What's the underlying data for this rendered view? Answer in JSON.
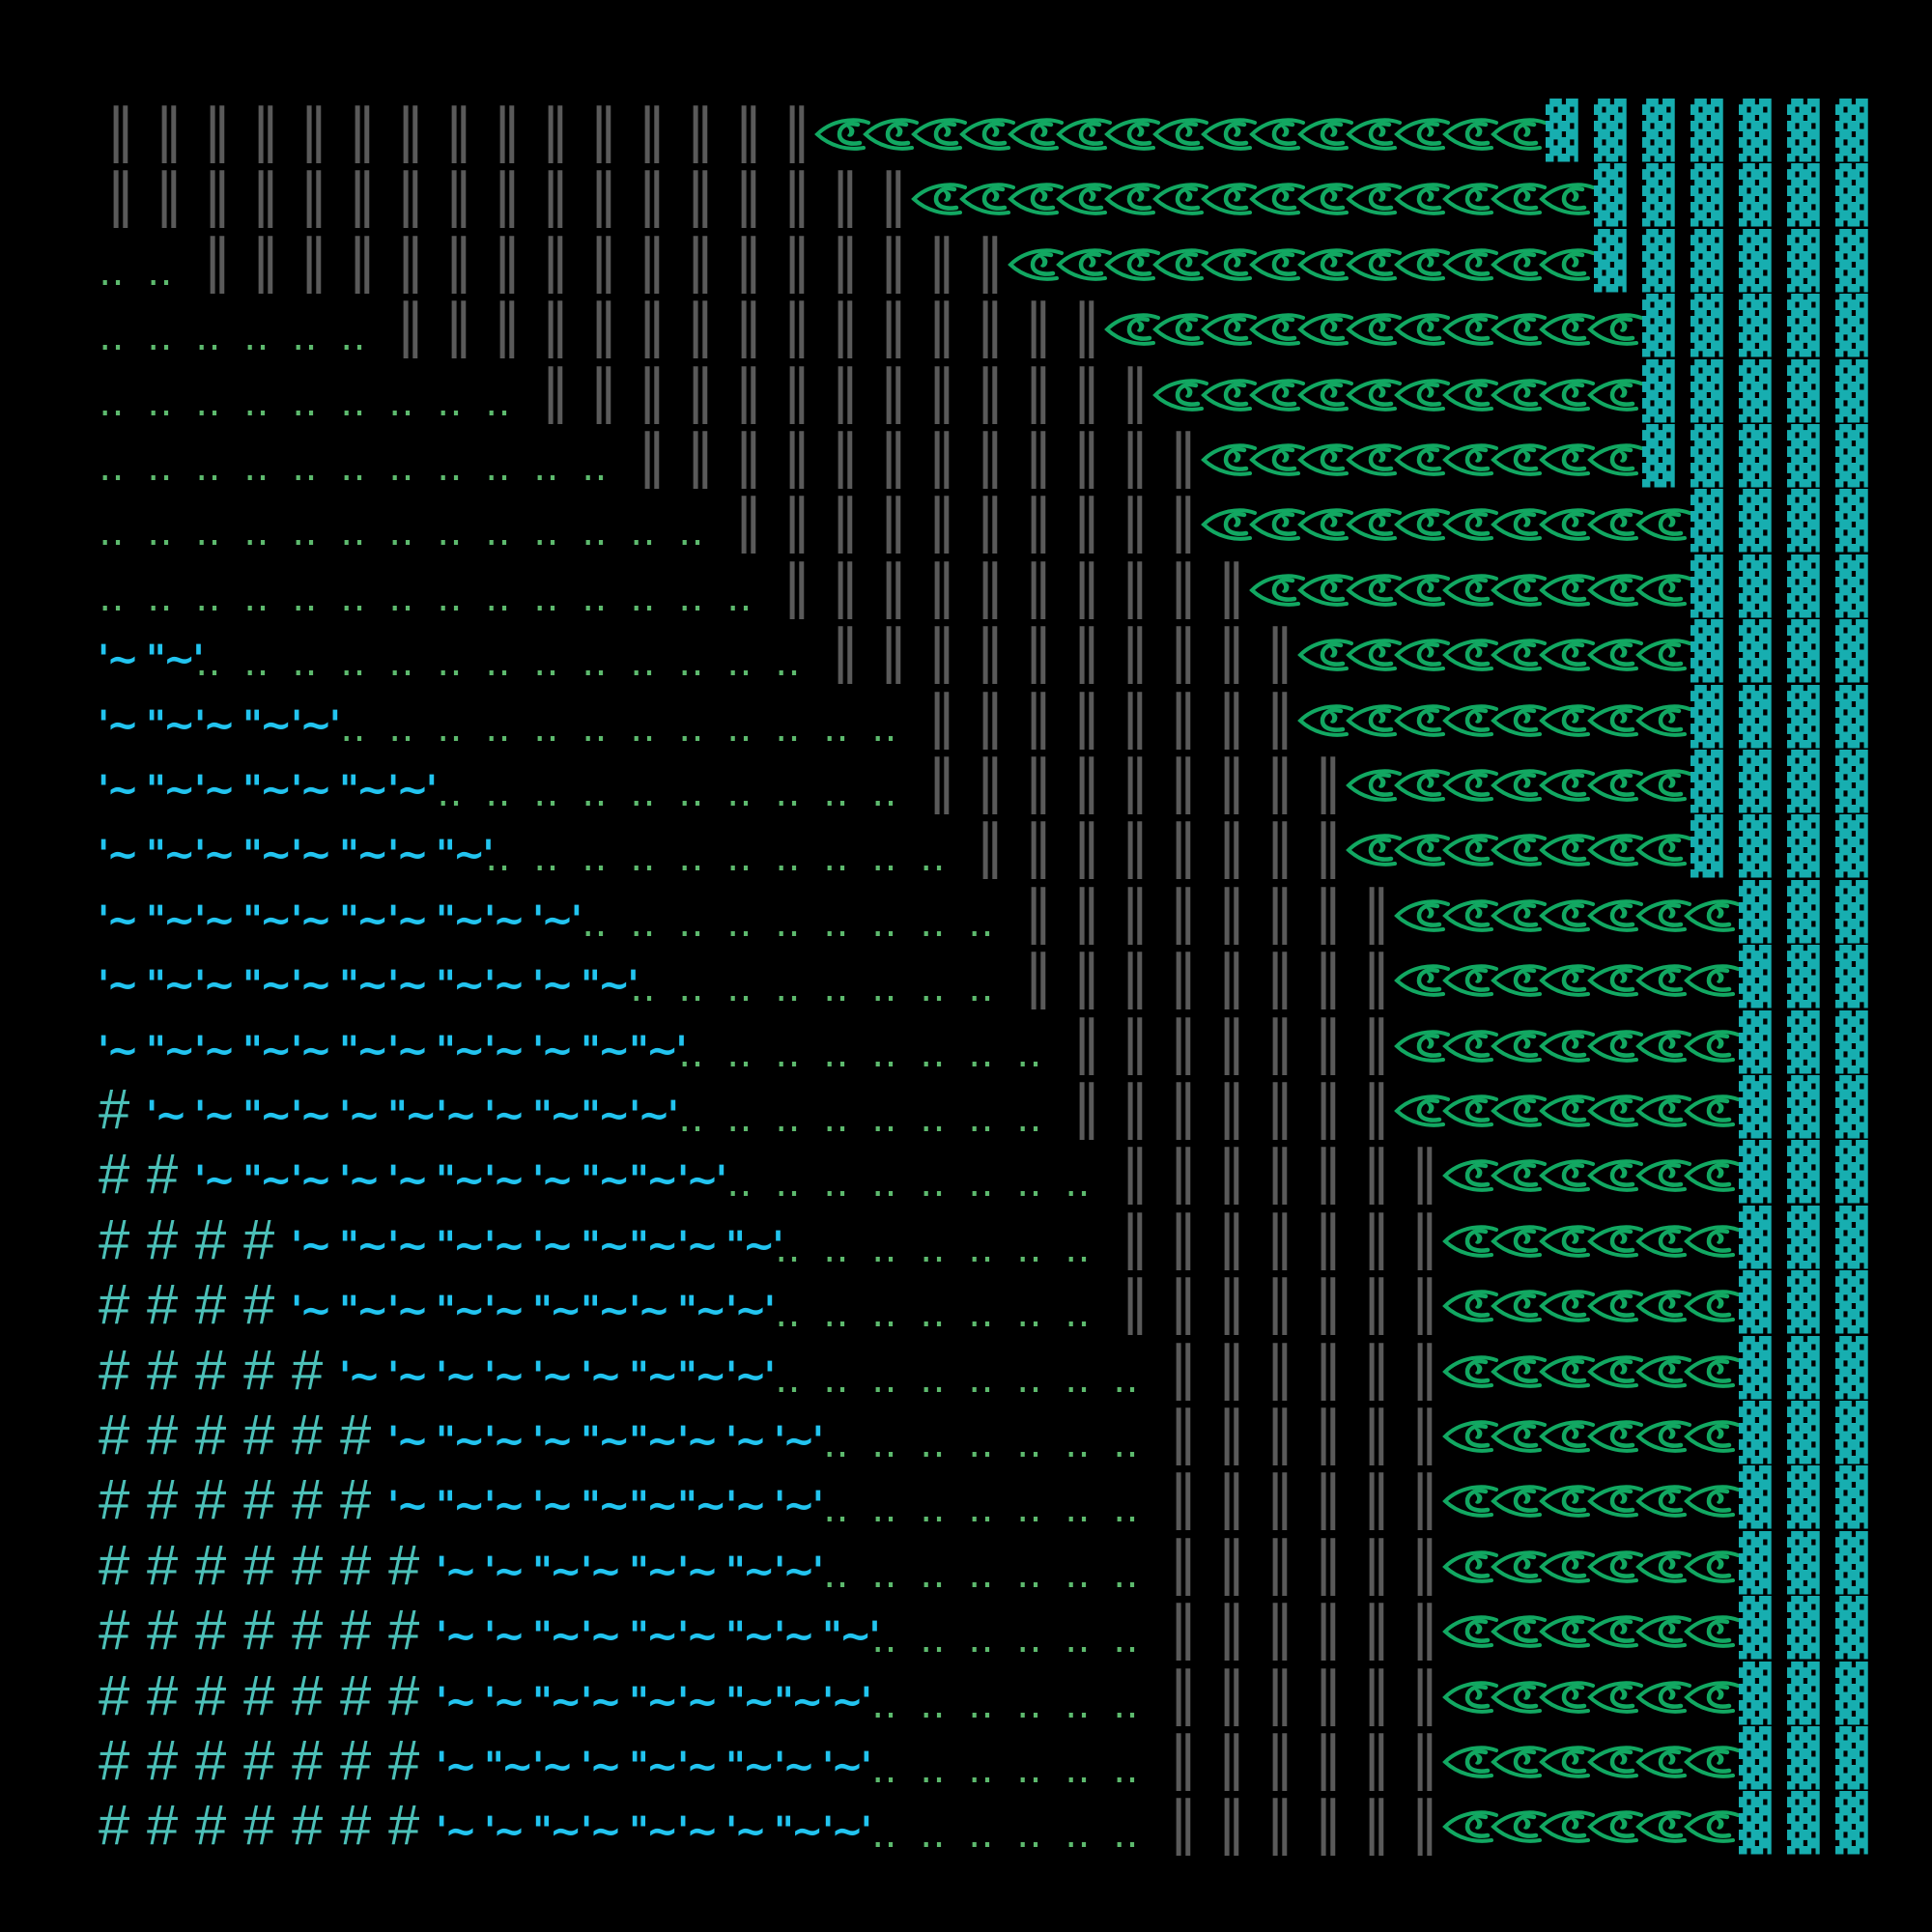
{
  "glyphs": {
    "bar": "‖",
    "dots": "‥",
    "block": "▓",
    "hash": "#",
    "eye": "eye-icon"
  },
  "colors": {
    "background": "#000000",
    "bar": "#5a5a5a",
    "eye": "#12a862",
    "block": "#17aeb0",
    "dots": "#5dba6e",
    "wave": "#22c4f0",
    "hash": "#4cc0b8"
  },
  "rows": [
    [
      {
        "type": "bar",
        "count": 15
      },
      {
        "type": "eye",
        "count": 15
      },
      {
        "type": "block",
        "count": 7
      }
    ],
    [
      {
        "type": "bar",
        "count": 17
      },
      {
        "type": "eye",
        "count": 14
      },
      {
        "type": "block",
        "count": 6
      }
    ],
    [
      {
        "type": "dots",
        "count": 2
      },
      {
        "type": "bar",
        "count": 17
      },
      {
        "type": "eye",
        "count": 12
      },
      {
        "type": "block",
        "count": 6
      }
    ],
    [
      {
        "type": "dots",
        "count": 6
      },
      {
        "type": "bar",
        "count": 15
      },
      {
        "type": "eye",
        "count": 11
      },
      {
        "type": "block",
        "count": 5
      }
    ],
    [
      {
        "type": "dots",
        "count": 9
      },
      {
        "type": "bar",
        "count": 13
      },
      {
        "type": "eye",
        "count": 10
      },
      {
        "type": "block",
        "count": 5
      }
    ],
    [
      {
        "type": "dots",
        "count": 11
      },
      {
        "type": "bar",
        "count": 12
      },
      {
        "type": "eye",
        "count": 9
      },
      {
        "type": "block",
        "count": 5
      }
    ],
    [
      {
        "type": "dots",
        "count": 13
      },
      {
        "type": "bar",
        "count": 10
      },
      {
        "type": "eye",
        "count": 10
      },
      {
        "type": "block",
        "count": 4
      }
    ],
    [
      {
        "type": "dots",
        "count": 14
      },
      {
        "type": "bar",
        "count": 10
      },
      {
        "type": "eye",
        "count": 9
      },
      {
        "type": "block",
        "count": 4
      }
    ],
    [
      {
        "type": "wave",
        "text": "'~\"~'"
      },
      {
        "type": "dots",
        "count": 13
      },
      {
        "type": "bar",
        "count": 10
      },
      {
        "type": "eye",
        "count": 8
      },
      {
        "type": "block",
        "count": 4
      }
    ],
    [
      {
        "type": "wave",
        "text": "'~\"~'~\"~'~'"
      },
      {
        "type": "dots",
        "count": 12
      },
      {
        "type": "bar",
        "count": 8
      },
      {
        "type": "eye",
        "count": 8
      },
      {
        "type": "block",
        "count": 4
      }
    ],
    [
      {
        "type": "wave",
        "text": "'~\"~'~\"~'~\"~'~'"
      },
      {
        "type": "dots",
        "count": 10
      },
      {
        "type": "bar",
        "count": 9
      },
      {
        "type": "eye",
        "count": 7
      },
      {
        "type": "block",
        "count": 4
      }
    ],
    [
      {
        "type": "wave",
        "text": "'~\"~'~\"~'~\"~'~\"~'"
      },
      {
        "type": "dots",
        "count": 10
      },
      {
        "type": "bar",
        "count": 8
      },
      {
        "type": "eye",
        "count": 7
      },
      {
        "type": "block",
        "count": 4
      }
    ],
    [
      {
        "type": "wave",
        "text": "'~\"~'~\"~'~\"~'~\"~'~'~'"
      },
      {
        "type": "dots",
        "count": 9
      },
      {
        "type": "bar",
        "count": 8
      },
      {
        "type": "eye",
        "count": 7
      },
      {
        "type": "block",
        "count": 3
      }
    ],
    [
      {
        "type": "wave",
        "text": "'~\"~'~\"~'~\"~'~\"~'~'~\"~'"
      },
      {
        "type": "dots",
        "count": 8
      },
      {
        "type": "bar",
        "count": 8
      },
      {
        "type": "eye",
        "count": 7
      },
      {
        "type": "block",
        "count": 3
      }
    ],
    [
      {
        "type": "wave",
        "text": "'~\"~'~\"~'~\"~'~\"~'~'~\"~\"~'"
      },
      {
        "type": "dots",
        "count": 8
      },
      {
        "type": "bar",
        "count": 7
      },
      {
        "type": "eye",
        "count": 7
      },
      {
        "type": "block",
        "count": 3
      }
    ],
    [
      {
        "type": "hash",
        "count": 1
      },
      {
        "type": "wave",
        "text": "'~'~\"~'~'~\"~'~'~\"~\"~'~'"
      },
      {
        "type": "dots",
        "count": 8
      },
      {
        "type": "bar",
        "count": 7
      },
      {
        "type": "eye",
        "count": 7
      },
      {
        "type": "block",
        "count": 3
      }
    ],
    [
      {
        "type": "hash",
        "count": 2
      },
      {
        "type": "wave",
        "text": "'~\"~'~'~'~\"~'~'~\"~\"~'~'"
      },
      {
        "type": "dots",
        "count": 8
      },
      {
        "type": "bar",
        "count": 7
      },
      {
        "type": "eye",
        "count": 6
      },
      {
        "type": "block",
        "count": 3
      }
    ],
    [
      {
        "type": "hash",
        "count": 4
      },
      {
        "type": "wave",
        "text": "'~\"~'~\"~'~'~\"~\"~'~\"~'"
      },
      {
        "type": "dots",
        "count": 7
      },
      {
        "type": "bar",
        "count": 7
      },
      {
        "type": "eye",
        "count": 6
      },
      {
        "type": "block",
        "count": 3
      }
    ],
    [
      {
        "type": "hash",
        "count": 4
      },
      {
        "type": "wave",
        "text": "'~\"~'~\"~'~\"~\"~'~\"~'~'"
      },
      {
        "type": "dots",
        "count": 7
      },
      {
        "type": "bar",
        "count": 7
      },
      {
        "type": "eye",
        "count": 6
      },
      {
        "type": "block",
        "count": 3
      }
    ],
    [
      {
        "type": "hash",
        "count": 5
      },
      {
        "type": "wave",
        "text": "'~'~'~'~'~'~\"~\"~'~'"
      },
      {
        "type": "dots",
        "count": 8
      },
      {
        "type": "bar",
        "count": 6
      },
      {
        "type": "eye",
        "count": 6
      },
      {
        "type": "block",
        "count": 3
      }
    ],
    [
      {
        "type": "hash",
        "count": 6
      },
      {
        "type": "wave",
        "text": "'~\"~'~'~\"~\"~'~'~'~'"
      },
      {
        "type": "dots",
        "count": 7
      },
      {
        "type": "bar",
        "count": 6
      },
      {
        "type": "eye",
        "count": 6
      },
      {
        "type": "block",
        "count": 3
      }
    ],
    [
      {
        "type": "hash",
        "count": 6
      },
      {
        "type": "wave",
        "text": "'~\"~'~'~\"~\"~\"~'~'~'"
      },
      {
        "type": "dots",
        "count": 7
      },
      {
        "type": "bar",
        "count": 6
      },
      {
        "type": "eye",
        "count": 6
      },
      {
        "type": "block",
        "count": 3
      }
    ],
    [
      {
        "type": "hash",
        "count": 7
      },
      {
        "type": "wave",
        "text": "'~'~\"~'~\"~'~\"~'~'"
      },
      {
        "type": "dots",
        "count": 7
      },
      {
        "type": "bar",
        "count": 6
      },
      {
        "type": "eye",
        "count": 6
      },
      {
        "type": "block",
        "count": 3
      }
    ],
    [
      {
        "type": "hash",
        "count": 7
      },
      {
        "type": "wave",
        "text": "'~'~\"~'~\"~'~\"~'~\"~'"
      },
      {
        "type": "dots",
        "count": 6
      },
      {
        "type": "bar",
        "count": 6
      },
      {
        "type": "eye",
        "count": 6
      },
      {
        "type": "block",
        "count": 3
      }
    ],
    [
      {
        "type": "hash",
        "count": 7
      },
      {
        "type": "wave",
        "text": "'~'~\"~'~\"~'~\"~\"~'~'"
      },
      {
        "type": "dots",
        "count": 6
      },
      {
        "type": "bar",
        "count": 6
      },
      {
        "type": "eye",
        "count": 6
      },
      {
        "type": "block",
        "count": 3
      }
    ],
    [
      {
        "type": "hash",
        "count": 7
      },
      {
        "type": "wave",
        "text": "'~\"~'~'~\"~'~\"~'~'~'"
      },
      {
        "type": "dots",
        "count": 6
      },
      {
        "type": "bar",
        "count": 6
      },
      {
        "type": "eye",
        "count": 6
      },
      {
        "type": "block",
        "count": 3
      }
    ],
    [
      {
        "type": "hash",
        "count": 7
      },
      {
        "type": "wave",
        "text": "'~'~\"~'~\"~'~'~\"~'~'"
      },
      {
        "type": "dots",
        "count": 6
      },
      {
        "type": "bar",
        "count": 6
      },
      {
        "type": "eye",
        "count": 6
      },
      {
        "type": "block",
        "count": 3
      }
    ]
  ]
}
